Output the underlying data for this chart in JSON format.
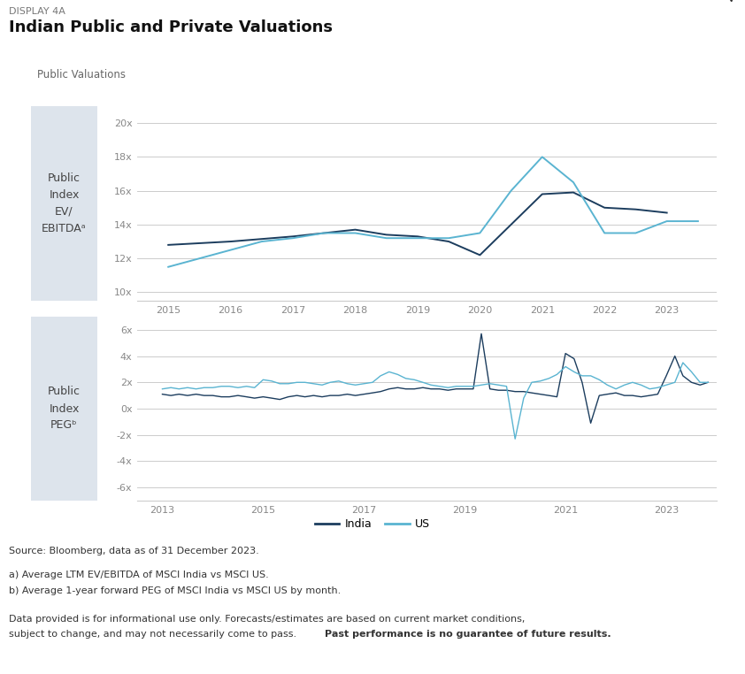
{
  "display_label": "DISPLAY 4A",
  "title": "Indian Public and Private Valuations",
  "section_label": "Public Valuations",
  "chart1": {
    "ylabel_box": "Public\nIndex\nEV/\nEBITDAᵃ",
    "yticks": [
      10,
      12,
      14,
      16,
      18,
      20
    ],
    "ylim": [
      9.5,
      21
    ],
    "xticks": [
      2015,
      2016,
      2017,
      2018,
      2019,
      2020,
      2021,
      2022,
      2023
    ],
    "xlim": [
      2014.5,
      2023.8
    ],
    "india_x": [
      2015,
      2016,
      2017,
      2017.5,
      2018,
      2018.5,
      2019,
      2019.5,
      2020,
      2021,
      2021.5,
      2022,
      2022.5,
      2023
    ],
    "india_y": [
      12.8,
      13.0,
      13.3,
      13.5,
      13.7,
      13.4,
      13.3,
      13.0,
      12.2,
      15.8,
      15.9,
      15.0,
      14.9,
      14.7
    ],
    "us_x": [
      2015,
      2015.5,
      2016,
      2016.5,
      2017,
      2017.5,
      2018,
      2018.5,
      2019,
      2019.5,
      2020,
      2020.5,
      2021,
      2021.5,
      2022,
      2022.5,
      2023,
      2023.5
    ],
    "us_y": [
      11.5,
      12.0,
      12.5,
      13.0,
      13.2,
      13.5,
      13.5,
      13.2,
      13.2,
      13.2,
      13.5,
      16.0,
      18.0,
      16.5,
      13.5,
      13.5,
      14.2,
      14.2
    ]
  },
  "chart2": {
    "ylabel_box": "Public\nIndex\nPEGᵇ",
    "yticks": [
      -6,
      -4,
      -2,
      0,
      2,
      4,
      6
    ],
    "ylim": [
      -7,
      7
    ],
    "xticks": [
      2013,
      2015,
      2017,
      2019,
      2021,
      2023
    ],
    "xlim": [
      2012.5,
      2024.0
    ],
    "india_x": [
      2013.0,
      2013.17,
      2013.33,
      2013.5,
      2013.67,
      2013.83,
      2014.0,
      2014.17,
      2014.33,
      2014.5,
      2014.67,
      2014.83,
      2015.0,
      2015.17,
      2015.33,
      2015.5,
      2015.67,
      2015.83,
      2016.0,
      2016.17,
      2016.33,
      2016.5,
      2016.67,
      2016.83,
      2017.0,
      2017.17,
      2017.33,
      2017.5,
      2017.67,
      2017.83,
      2018.0,
      2018.17,
      2018.33,
      2018.5,
      2018.67,
      2018.83,
      2019.0,
      2019.17,
      2019.33,
      2019.5,
      2019.67,
      2019.83,
      2020.0,
      2020.17,
      2020.33,
      2020.5,
      2020.67,
      2020.83,
      2021.0,
      2021.17,
      2021.33,
      2021.5,
      2021.67,
      2021.83,
      2022.0,
      2022.17,
      2022.33,
      2022.5,
      2022.67,
      2022.83,
      2023.0,
      2023.17,
      2023.33,
      2023.5,
      2023.67,
      2023.83
    ],
    "india_y": [
      1.1,
      1.0,
      1.1,
      1.0,
      1.1,
      1.0,
      1.0,
      0.9,
      0.9,
      1.0,
      0.9,
      0.8,
      0.9,
      0.8,
      0.7,
      0.9,
      1.0,
      0.9,
      1.0,
      0.9,
      1.0,
      1.0,
      1.1,
      1.0,
      1.1,
      1.2,
      1.3,
      1.5,
      1.6,
      1.5,
      1.5,
      1.6,
      1.5,
      1.5,
      1.4,
      1.5,
      1.5,
      1.5,
      5.7,
      1.5,
      1.4,
      1.4,
      1.3,
      1.3,
      1.2,
      1.1,
      1.0,
      0.9,
      4.2,
      3.8,
      2.0,
      -1.1,
      1.0,
      1.1,
      1.2,
      1.0,
      1.0,
      0.9,
      1.0,
      1.1,
      2.5,
      4.0,
      2.5,
      2.0,
      1.8,
      2.0
    ],
    "us_x": [
      2013.0,
      2013.17,
      2013.33,
      2013.5,
      2013.67,
      2013.83,
      2014.0,
      2014.17,
      2014.33,
      2014.5,
      2014.67,
      2014.83,
      2015.0,
      2015.17,
      2015.33,
      2015.5,
      2015.67,
      2015.83,
      2016.0,
      2016.17,
      2016.33,
      2016.5,
      2016.67,
      2016.83,
      2017.0,
      2017.17,
      2017.33,
      2017.5,
      2017.67,
      2017.83,
      2018.0,
      2018.17,
      2018.33,
      2018.5,
      2018.67,
      2018.83,
      2019.0,
      2019.17,
      2019.33,
      2019.5,
      2019.67,
      2019.83,
      2020.0,
      2020.17,
      2020.33,
      2020.5,
      2020.67,
      2020.83,
      2021.0,
      2021.17,
      2021.33,
      2021.5,
      2021.67,
      2021.83,
      2022.0,
      2022.17,
      2022.33,
      2022.5,
      2022.67,
      2022.83,
      2023.0,
      2023.17,
      2023.33,
      2023.5,
      2023.67,
      2023.83
    ],
    "us_y": [
      1.5,
      1.6,
      1.5,
      1.6,
      1.5,
      1.6,
      1.6,
      1.7,
      1.7,
      1.6,
      1.7,
      1.6,
      2.2,
      2.1,
      1.9,
      1.9,
      2.0,
      2.0,
      1.9,
      1.8,
      2.0,
      2.1,
      1.9,
      1.8,
      1.9,
      2.0,
      2.5,
      2.8,
      2.6,
      2.3,
      2.2,
      2.0,
      1.8,
      1.7,
      1.6,
      1.7,
      1.7,
      1.7,
      1.8,
      1.9,
      1.8,
      1.7,
      -2.3,
      0.8,
      2.0,
      2.1,
      2.3,
      2.6,
      3.2,
      2.8,
      2.5,
      2.5,
      2.2,
      1.8,
      1.5,
      1.8,
      2.0,
      1.8,
      1.5,
      1.6,
      1.8,
      2.0,
      3.5,
      2.8,
      2.0,
      2.0
    ]
  },
  "india_color": "#1c3d5e",
  "us_color": "#5ab4d1",
  "label_box_bg": "#dde4ec",
  "bg_color": "#ffffff",
  "grid_color": "#cccccc",
  "tick_color": "#888888",
  "source_text": "Source: Bloomberg, data as of 31 December 2023.",
  "note_a": "a) Average LTM EV/EBITDA of MSCI India vs MSCI US.",
  "note_b": "b) Average 1-year forward PEG of MSCI India vs MSCI US by month.",
  "disclaimer1": "Data provided is for informational use only. Forecasts/estimates are based on current market conditions,",
  "disclaimer2": "subject to change, and may not necessarily come to pass. ",
  "disclaimer_bold": "Past performance is no guarantee of future results.",
  "legend_india": "India",
  "legend_us": "US"
}
